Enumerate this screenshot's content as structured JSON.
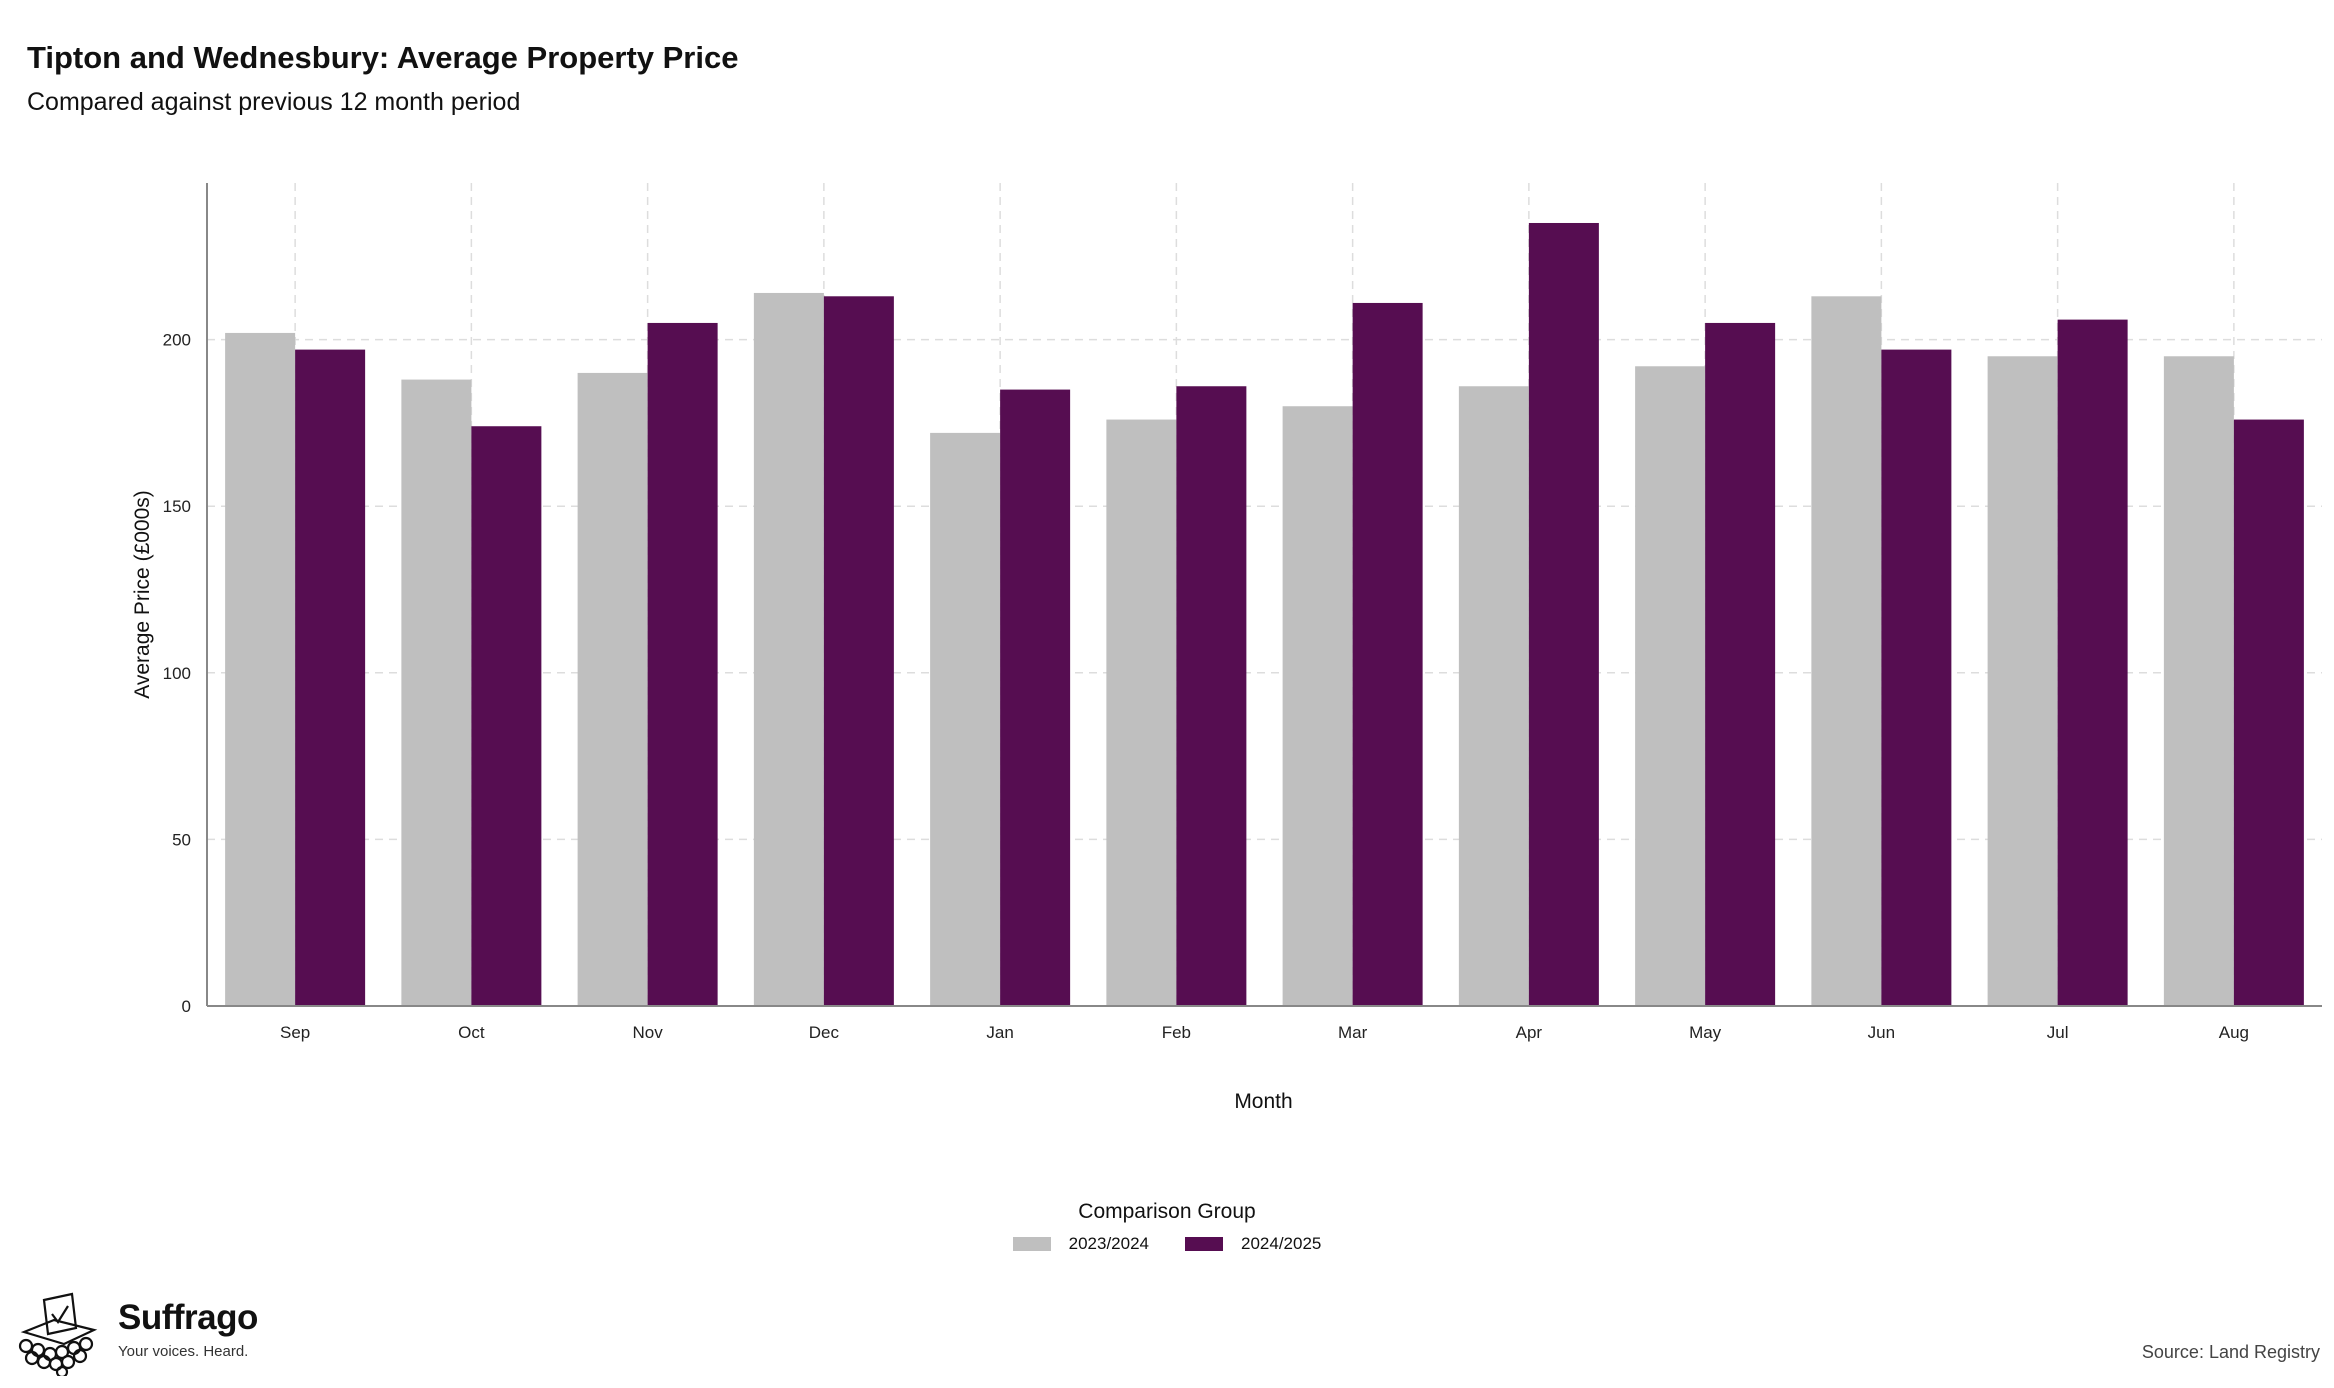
{
  "header": {
    "title": "Tipton and Wednesbury: Average Property Price",
    "subtitle": "Compared against previous 12 month period"
  },
  "legend": {
    "title": "Comparison Group",
    "items": [
      {
        "label": "2023/2024",
        "color": "#bfbfbf"
      },
      {
        "label": "2024/2025",
        "color": "#560d51"
      }
    ]
  },
  "footer": {
    "brand": "Suffrago",
    "tagline": "Your voices. Heard.",
    "source": "Source: Land Registry"
  },
  "chart_data": {
    "type": "bar",
    "title": "Tipton and Wednesbury: Average Property Price",
    "subtitle": "Compared against previous 12 month period",
    "xlabel": "Month",
    "ylabel": "Average Price (£000s)",
    "categories": [
      "Sep",
      "Oct",
      "Nov",
      "Dec",
      "Jan",
      "Feb",
      "Mar",
      "Apr",
      "May",
      "Jun",
      "Jul",
      "Aug"
    ],
    "series": [
      {
        "name": "2023/2024",
        "color": "#bfbfbf",
        "values": [
          202,
          188,
          190,
          214,
          172,
          176,
          180,
          186,
          192,
          213,
          195,
          195
        ]
      },
      {
        "name": "2024/2025",
        "color": "#560d51",
        "values": [
          197,
          174,
          205,
          213,
          185,
          186,
          211,
          235,
          205,
          197,
          206,
          176
        ]
      }
    ],
    "yticks": [
      0,
      50,
      100,
      150,
      200
    ],
    "ylim": [
      0,
      247
    ],
    "grid": true,
    "legend_position": "bottom"
  }
}
